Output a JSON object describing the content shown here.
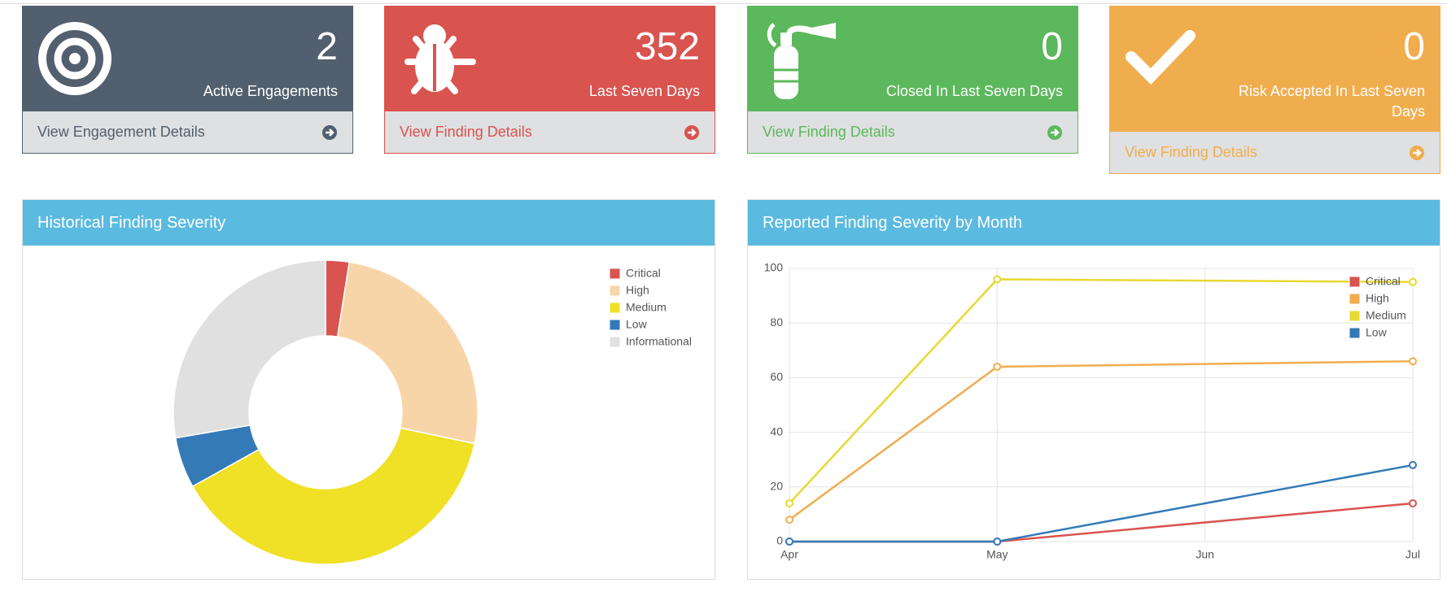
{
  "cards": [
    {
      "count": 2,
      "label": "Active Engagements",
      "link": "View Engagement Details"
    },
    {
      "count": 352,
      "label": "Last Seven Days",
      "link": "View Finding Details"
    },
    {
      "count": 0,
      "label": "Closed In Last Seven Days",
      "link": "View Finding Details"
    },
    {
      "count": 0,
      "label": "Risk Accepted In Last Seven Days",
      "link": "View Finding Details"
    }
  ],
  "chart_data": [
    {
      "type": "pie",
      "title": "Historical Finding Severity",
      "donut": true,
      "categories": [
        "Critical",
        "High",
        "Medium",
        "Low",
        "Informational"
      ],
      "values": [
        2.5,
        25.8,
        38.6,
        5.4,
        27.7
      ],
      "colors": [
        "#d9534f",
        "#f8d5a8",
        "#f0e026",
        "#337ab7",
        "#e0e0e0"
      ],
      "legend": "top-right"
    },
    {
      "type": "line",
      "title": "Reported Finding Severity by Month",
      "categories": [
        "Apr",
        "May",
        "Jun",
        "Jul"
      ],
      "series": [
        {
          "name": "Critical",
          "color": "#d9534f",
          "values": [
            0,
            0,
            null,
            14
          ]
        },
        {
          "name": "High",
          "color": "#f0ad4e",
          "values": [
            8,
            64,
            null,
            66
          ]
        },
        {
          "name": "Medium",
          "color": "#e8d932",
          "values": [
            14,
            96,
            null,
            95
          ]
        },
        {
          "name": "Low",
          "color": "#337ab7",
          "values": [
            0,
            0,
            null,
            28
          ]
        }
      ],
      "ylim": [
        0,
        100
      ],
      "yticks": [
        0,
        20,
        40,
        60,
        80,
        100
      ],
      "grid": true,
      "legend": "top-right"
    }
  ]
}
